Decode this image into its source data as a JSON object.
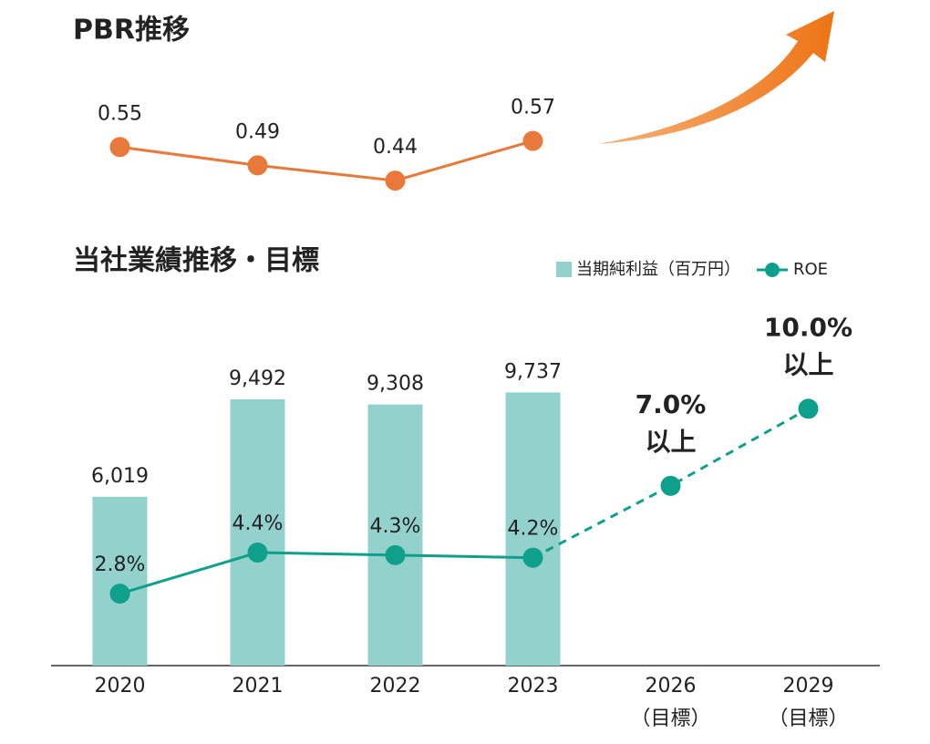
{
  "chart_data": [
    {
      "type": "line",
      "title": "PBR推移",
      "categories": [
        null,
        null,
        null,
        null
      ],
      "values": [
        0.55,
        0.49,
        0.44,
        0.57
      ],
      "color": "#e8793a",
      "ylim": [
        0.3,
        0.7
      ]
    },
    {
      "type": "bar",
      "title": "当社業績推移・目標",
      "categories": [
        "2020",
        "2021",
        "2022",
        "2023",
        "2026",
        "2029"
      ],
      "category_notes": [
        null,
        null,
        null,
        null,
        "（目標）",
        "（目標）"
      ],
      "ylim": [
        0,
        13000
      ],
      "y2lim": [
        0,
        14.2
      ],
      "series": [
        {
          "name": "当期純利益（百万円）",
          "type": "bar",
          "color": "#93d1cd",
          "values": [
            6019,
            9492,
            9308,
            9737,
            null,
            null
          ],
          "value_labels": [
            "6,019",
            "9,492",
            "9,308",
            "9,737",
            null,
            null
          ]
        },
        {
          "name": "ROE",
          "type": "line",
          "axis": "y2",
          "color": "#0fa08c",
          "values": [
            2.8,
            4.4,
            4.3,
            4.2,
            7.0,
            10.0
          ],
          "value_labels": [
            "2.8%",
            "4.4%",
            "4.3%",
            "4.2%",
            "7.0%",
            "10.0%"
          ],
          "value_notes": [
            null,
            null,
            null,
            null,
            "以上",
            "以上"
          ],
          "projected": [
            false,
            false,
            false,
            false,
            true,
            true
          ]
        }
      ]
    }
  ]
}
